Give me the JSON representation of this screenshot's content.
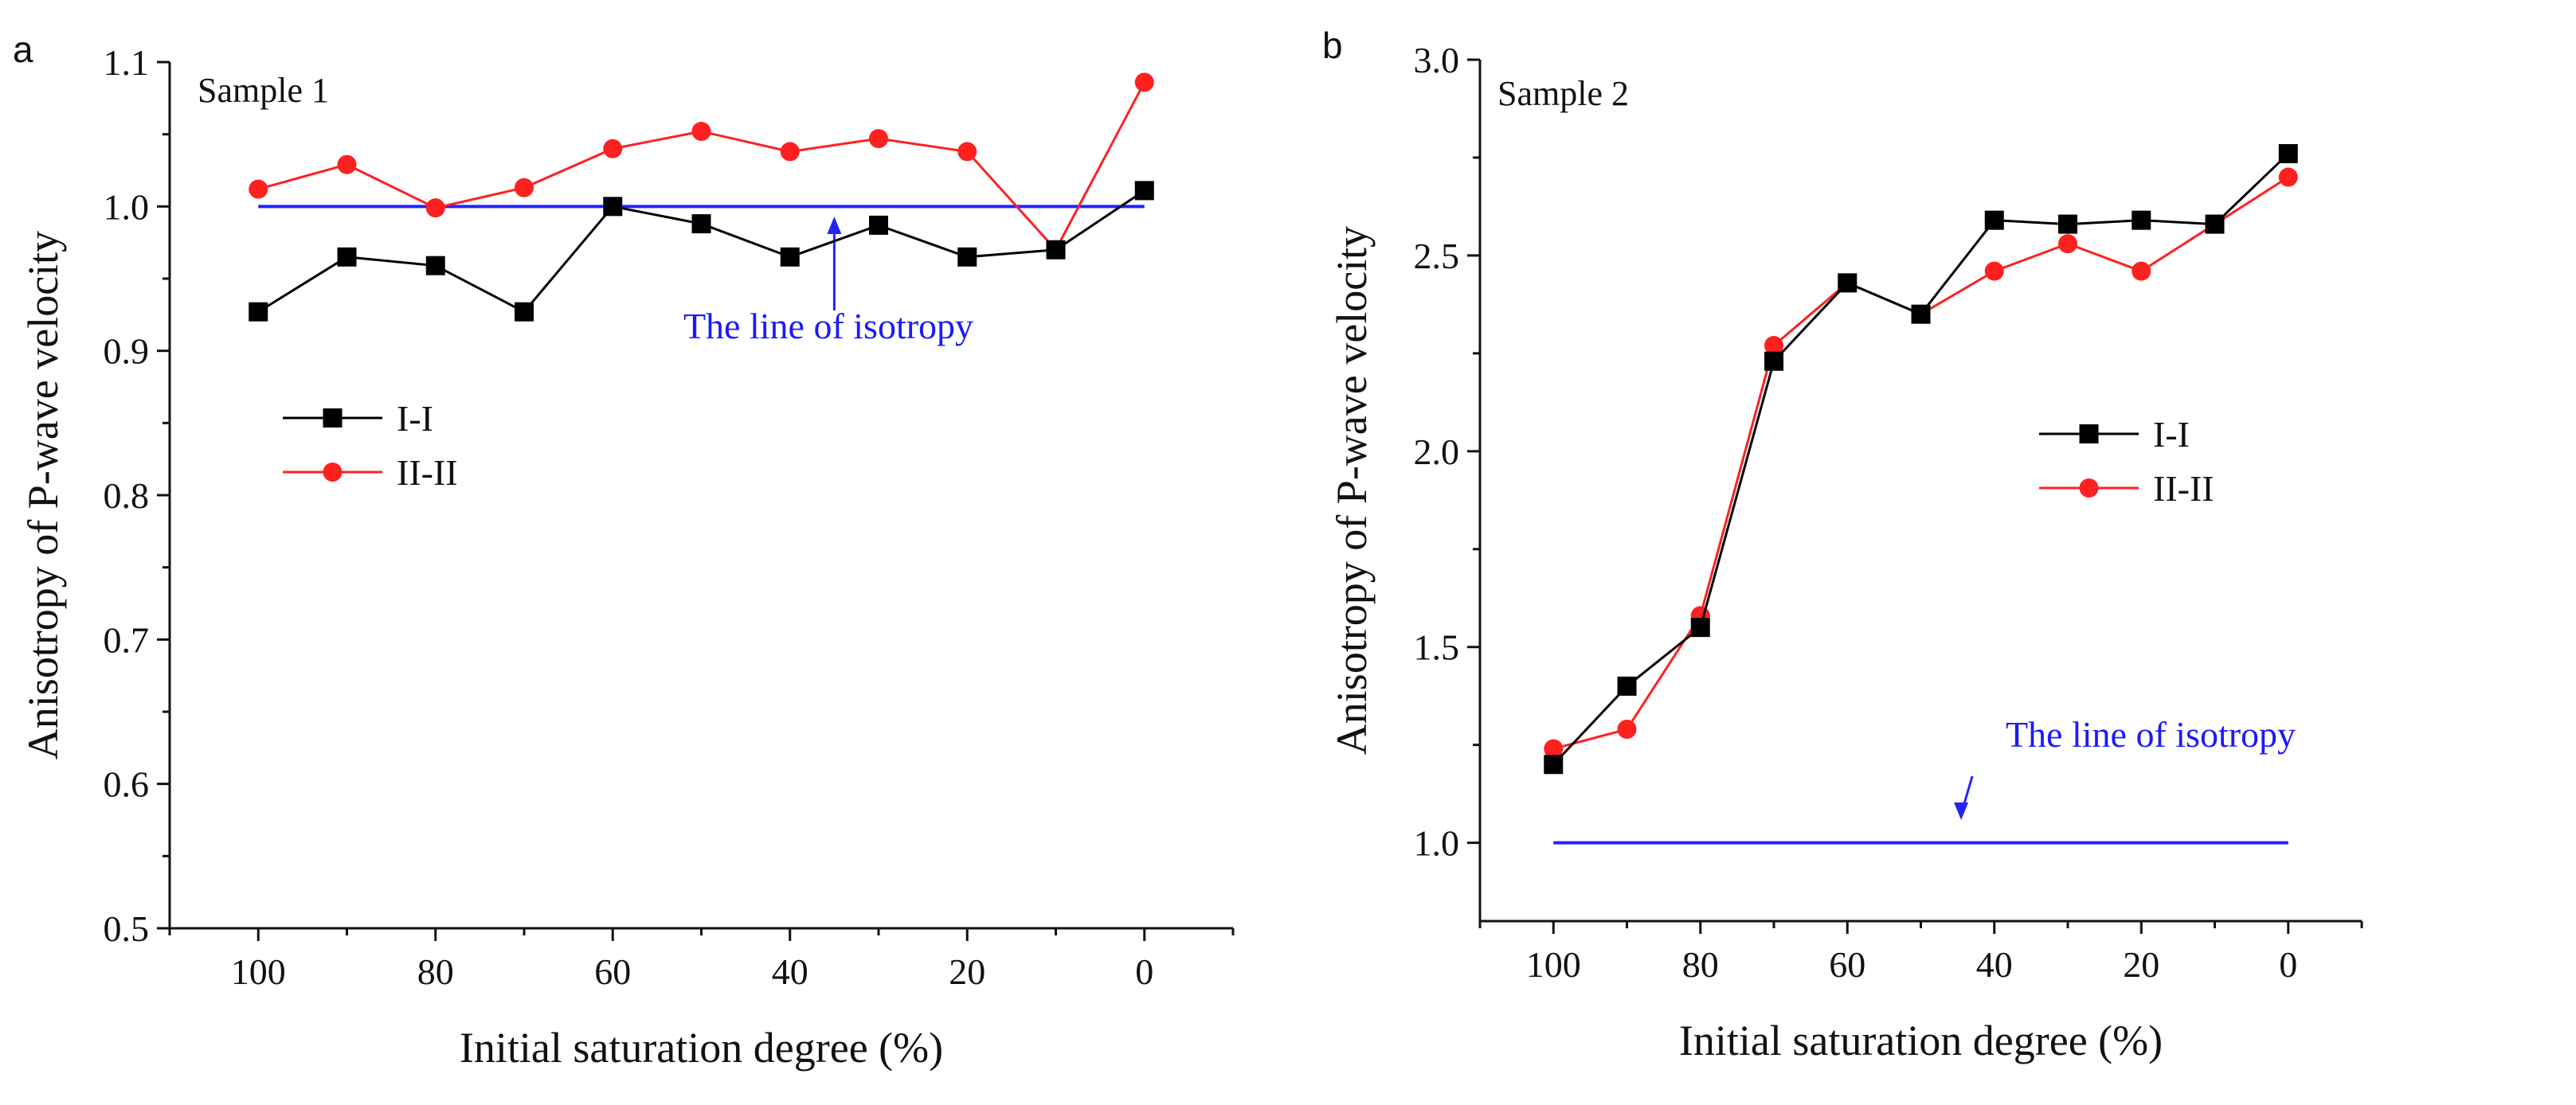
{
  "chart_data": [
    {
      "type": "line",
      "panel_letter": "a",
      "sample_label": "Sample 1",
      "xlabel": "Initial saturation degree (%)",
      "ylabel": "Anisotropy of P-wave velocity",
      "xlim": [
        110,
        -10
      ],
      "ylim": [
        0.5,
        1.1
      ],
      "x_ticks": [
        100,
        80,
        60,
        40,
        20,
        0
      ],
      "y_ticks": [
        "0.5",
        "0.6",
        "0.7",
        "0.8",
        "0.9",
        "1.0",
        "1.1"
      ],
      "x": [
        100,
        90,
        80,
        70,
        60,
        50,
        40,
        30,
        20,
        10,
        0
      ],
      "series": [
        {
          "name": "I-I",
          "color": "#000000",
          "marker": "square",
          "values": [
            0.927,
            0.965,
            0.959,
            0.927,
            1.0,
            0.988,
            0.965,
            0.987,
            0.965,
            0.97,
            1.011
          ]
        },
        {
          "name": "II-II",
          "color": "#ff2020",
          "marker": "circle",
          "values": [
            1.012,
            1.029,
            0.999,
            1.013,
            1.04,
            1.052,
            1.038,
            1.047,
            1.038,
            0.97,
            1.086
          ]
        }
      ],
      "reference_line": {
        "y": 1.0,
        "x_range": [
          100,
          0
        ],
        "color": "#2222ff"
      },
      "annotation": {
        "text": "The line of isotropy",
        "arrow_x": 35
      },
      "legend": "center-left",
      "grid": false
    },
    {
      "type": "line",
      "panel_letter": "b",
      "sample_label": "Sample 2",
      "xlabel": "Initial saturation degree (%)",
      "ylabel": "Anisotropy of P-wave velocity",
      "xlim": [
        110,
        -10
      ],
      "ylim": [
        0.8,
        3.0
      ],
      "x_ticks": [
        100,
        80,
        60,
        40,
        20,
        0
      ],
      "y_ticks": [
        "1.0",
        "1.5",
        "2.0",
        "2.5",
        "3.0"
      ],
      "x": [
        100,
        90,
        80,
        70,
        60,
        50,
        40,
        30,
        20,
        10,
        0
      ],
      "series": [
        {
          "name": "I-I",
          "color": "#000000",
          "marker": "square",
          "values": [
            1.2,
            1.4,
            1.55,
            2.23,
            2.43,
            2.35,
            2.59,
            2.58,
            2.59,
            2.58,
            2.76
          ]
        },
        {
          "name": "II-II",
          "color": "#ff2020",
          "marker": "circle",
          "values": [
            1.24,
            1.29,
            1.58,
            2.27,
            2.43,
            2.35,
            2.46,
            2.53,
            2.46,
            2.58,
            2.7
          ]
        }
      ],
      "reference_line": {
        "y": 1.0,
        "x_range": [
          100,
          0
        ],
        "color": "#2222ff"
      },
      "annotation": {
        "text": "The line of isotropy",
        "arrow_x": 43
      },
      "legend": "center-right",
      "grid": false
    }
  ]
}
